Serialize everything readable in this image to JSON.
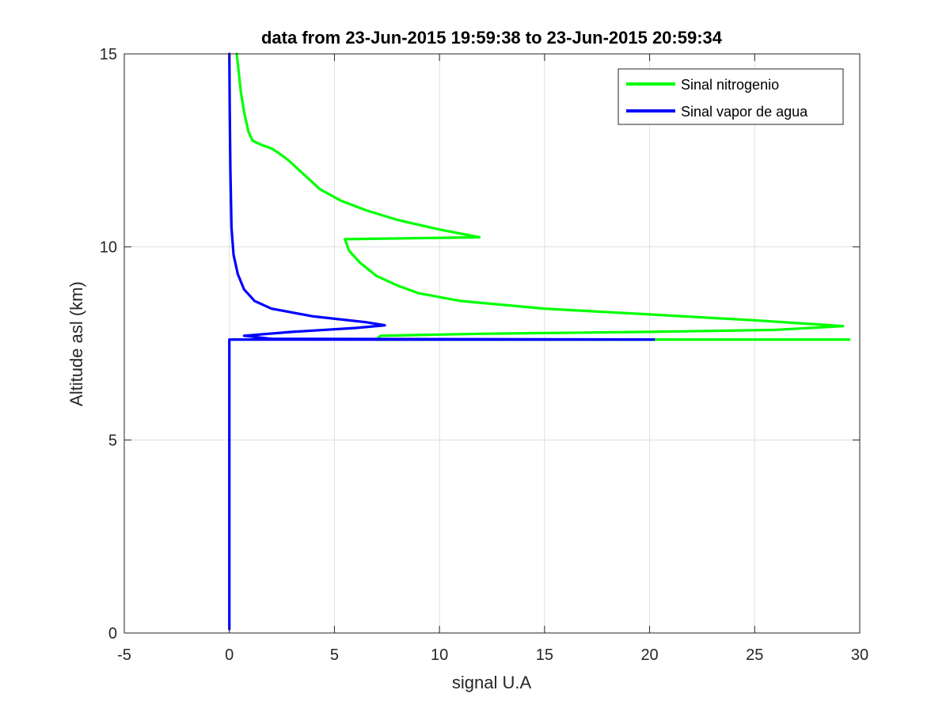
{
  "chart_data": {
    "type": "line",
    "title": "data from 23-Jun-2015 19:59:38 to 23-Jun-2015 20:59:34",
    "xlabel": "signal U.A",
    "ylabel": "Altitude asl (km)",
    "xlim": [
      -5,
      30
    ],
    "ylim": [
      0,
      15
    ],
    "xticks": [
      -5,
      0,
      5,
      10,
      15,
      20,
      25,
      30
    ],
    "yticks": [
      0,
      5,
      10,
      15
    ],
    "grid": true,
    "legend_position": "top-right",
    "series": [
      {
        "name": "Sinal nitrogenio",
        "color": "#00ff00",
        "points": [
          [
            29.5,
            7.6
          ],
          [
            7.0,
            7.6
          ],
          [
            7.2,
            7.7
          ],
          [
            12.0,
            7.75
          ],
          [
            20.0,
            7.8
          ],
          [
            26.0,
            7.85
          ],
          [
            29.2,
            7.95
          ],
          [
            25.0,
            8.1
          ],
          [
            20.0,
            8.25
          ],
          [
            15.0,
            8.4
          ],
          [
            11.0,
            8.6
          ],
          [
            9.0,
            8.8
          ],
          [
            8.0,
            9.0
          ],
          [
            7.0,
            9.25
          ],
          [
            6.2,
            9.6
          ],
          [
            5.7,
            9.9
          ],
          [
            5.5,
            10.2
          ],
          [
            11.9,
            10.25
          ],
          [
            10.0,
            10.45
          ],
          [
            8.0,
            10.7
          ],
          [
            6.5,
            10.95
          ],
          [
            5.3,
            11.2
          ],
          [
            4.3,
            11.5
          ],
          [
            3.5,
            11.9
          ],
          [
            2.8,
            12.25
          ],
          [
            2.3,
            12.45
          ],
          [
            2.0,
            12.55
          ],
          [
            1.5,
            12.65
          ],
          [
            1.1,
            12.75
          ],
          [
            0.9,
            13.0
          ],
          [
            0.7,
            13.5
          ],
          [
            0.55,
            14.0
          ],
          [
            0.45,
            14.5
          ],
          [
            0.35,
            15.0
          ]
        ]
      },
      {
        "name": "Sinal vapor de agua",
        "color": "#0000ff",
        "points": [
          [
            0.0,
            0.1
          ],
          [
            0.0,
            3.0
          ],
          [
            0.0,
            7.5
          ],
          [
            0.0,
            7.6
          ],
          [
            20.2,
            7.6
          ],
          [
            2.0,
            7.62
          ],
          [
            0.7,
            7.7
          ],
          [
            3.0,
            7.8
          ],
          [
            6.0,
            7.9
          ],
          [
            7.4,
            7.97
          ],
          [
            6.5,
            8.05
          ],
          [
            4.0,
            8.2
          ],
          [
            2.0,
            8.4
          ],
          [
            1.2,
            8.6
          ],
          [
            0.7,
            8.9
          ],
          [
            0.4,
            9.3
          ],
          [
            0.2,
            9.8
          ],
          [
            0.1,
            10.5
          ],
          [
            0.05,
            12.0
          ],
          [
            0.02,
            13.5
          ],
          [
            0.0,
            15.0
          ]
        ]
      }
    ]
  }
}
